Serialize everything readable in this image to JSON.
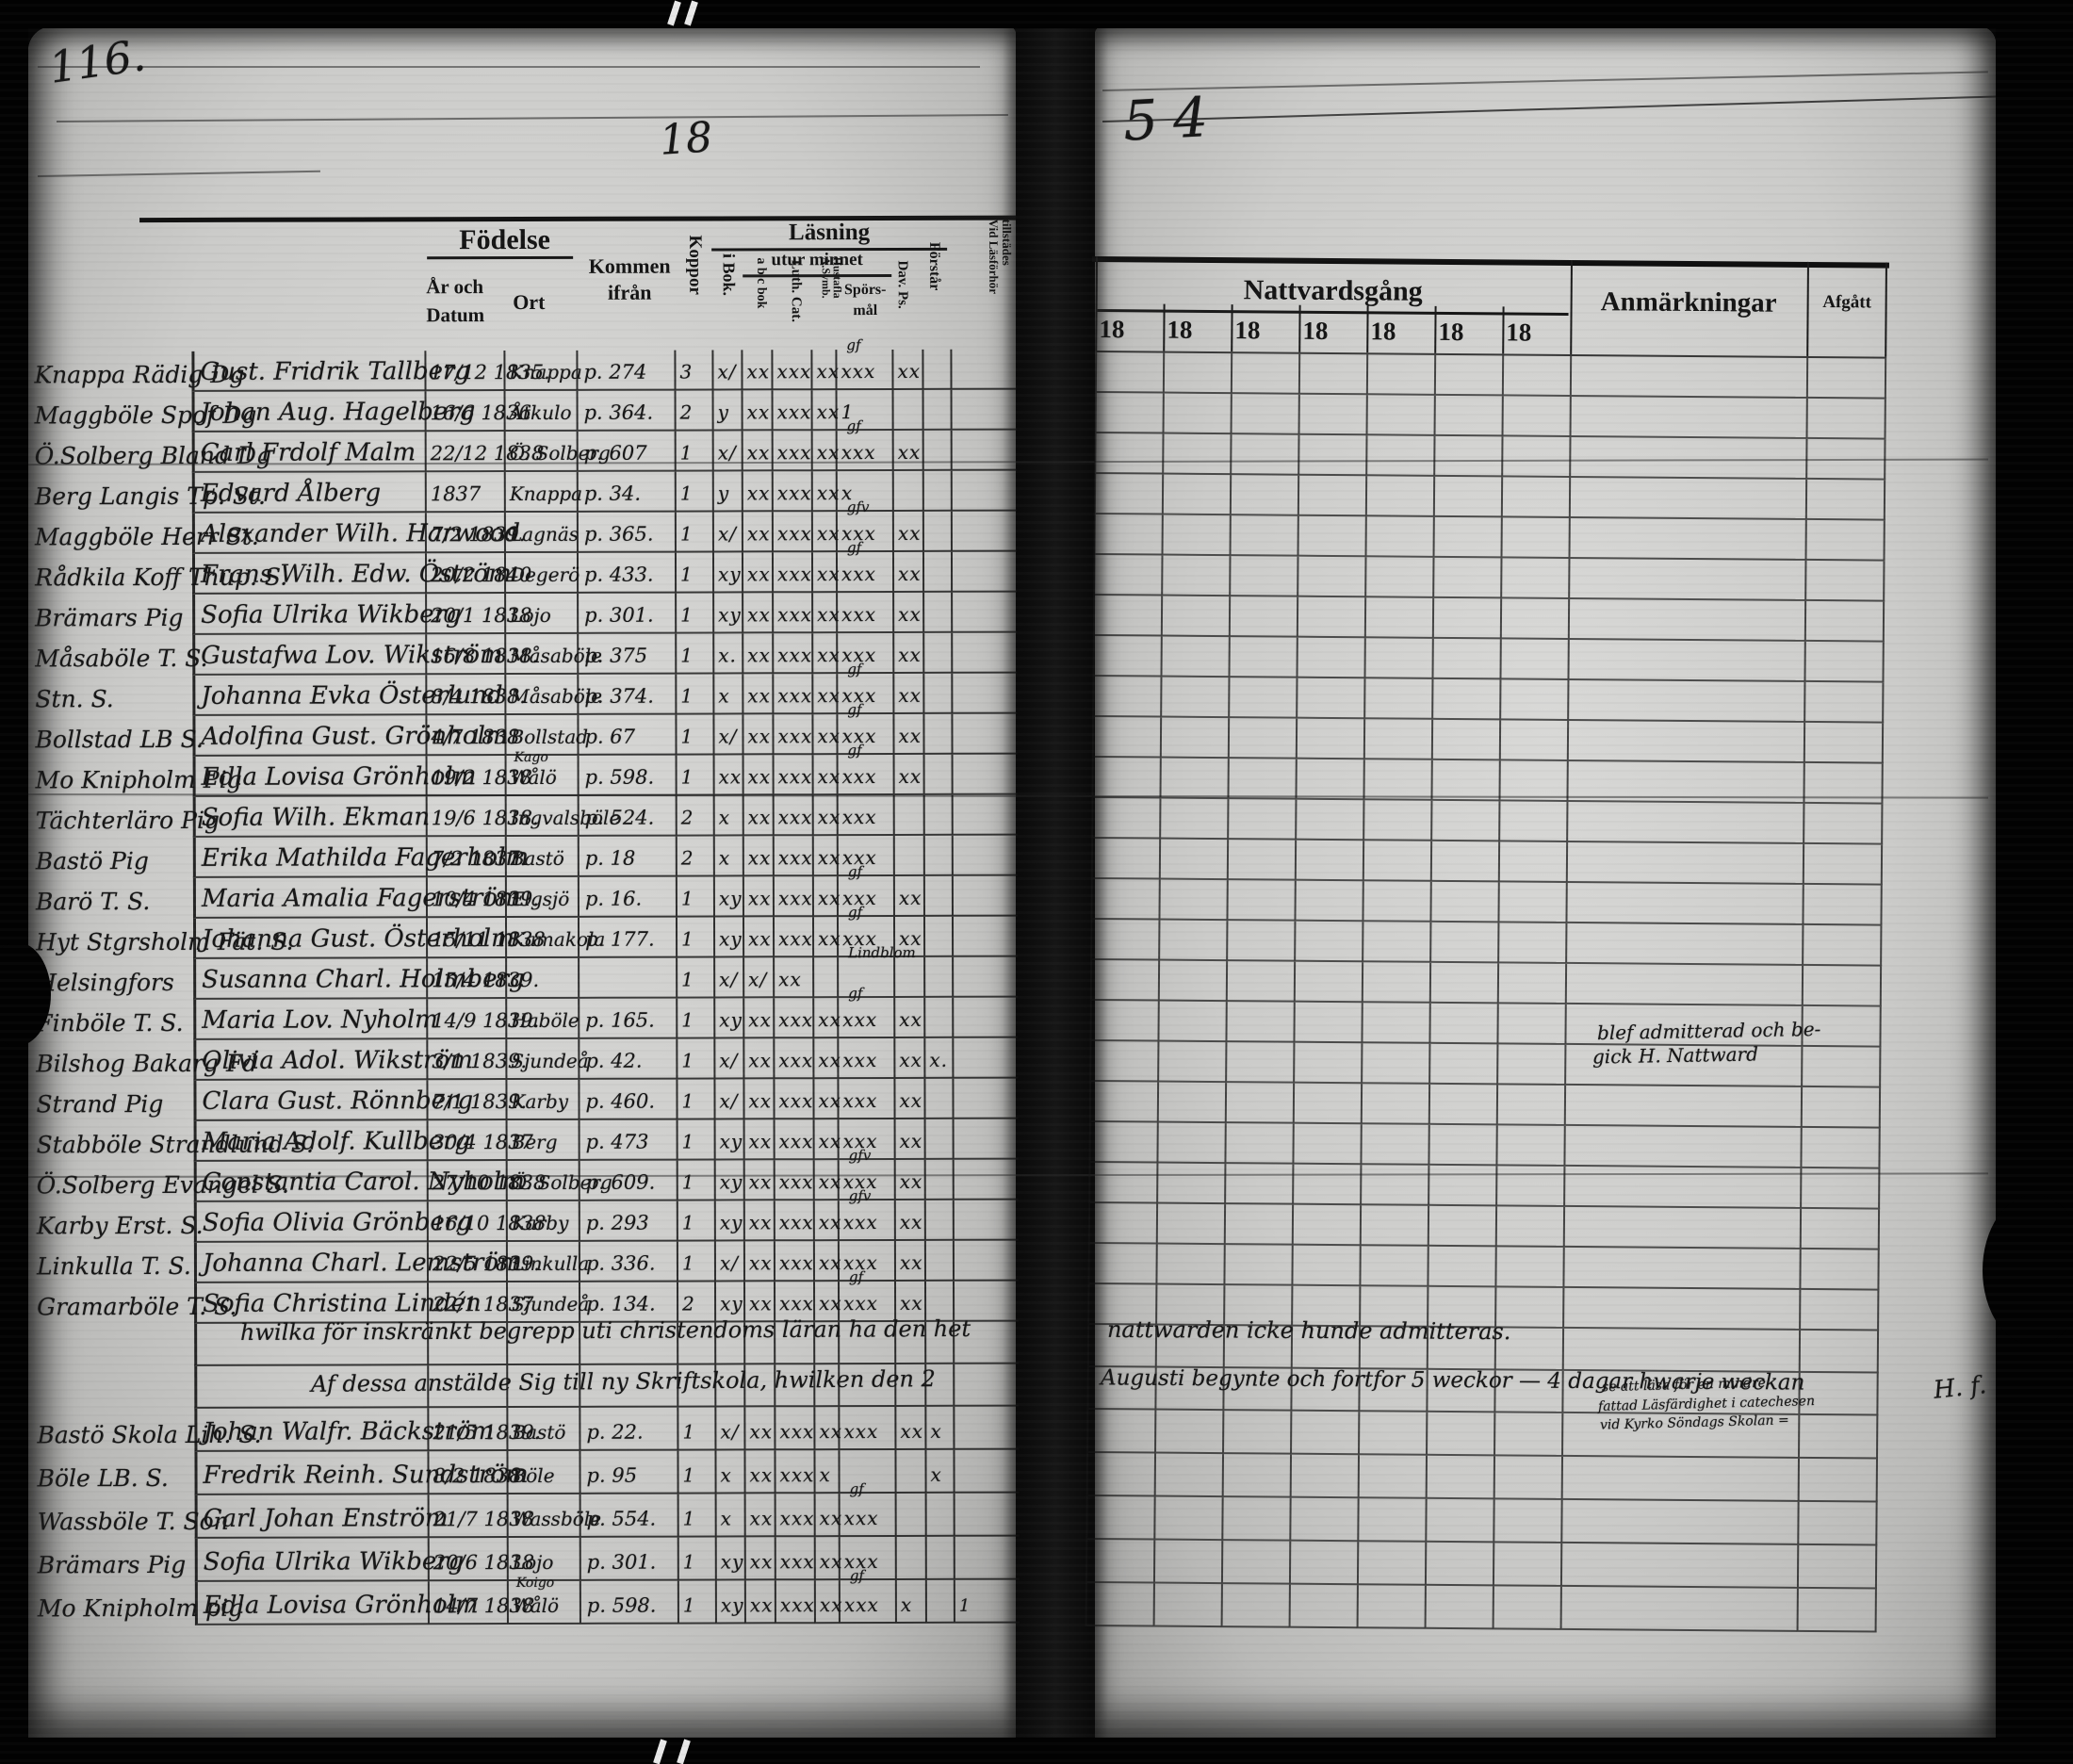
{
  "page": {
    "left_page_number": "116.",
    "year_handwritten_left": "18",
    "year_handwritten_right": "54"
  },
  "left_table": {
    "header": {
      "fodelse": "Födelse",
      "ar_och": "År och",
      "datum": "Datum",
      "ort": "Ort",
      "kommen": "Kommen",
      "ifran": "ifrån",
      "koppor": "Koppor",
      "lasning": "Läsning",
      "i_bok": "i Bok.",
      "utur_minnet": "utur minnet",
      "abc_bok": "a b c bok",
      "luth_cat": "Luth. Cat.",
      "symb": "A.Symb.",
      "hustafla": "Hustafla",
      "spors": "Spörs-",
      "mal": "mål",
      "dav_ps": "Dav. Ps.",
      "forstar": "Förstår",
      "vid_lasforhor": "Vid Läsförhör",
      "tillstades": "tillstädes"
    },
    "rows": [
      {
        "margin": "Knappa Rädig Dg",
        "name": "Gust. Fridrik Tallberg",
        "date": "17/12 1835.",
        "ortsup": "",
        "ort": "Knappa",
        "from": "p. 274",
        "koppor": "3",
        "marks": [
          "x/",
          "xx",
          "xxx",
          "xx",
          "xxx",
          "xx",
          ""
        ],
        "sup": "gf",
        "vid": ""
      },
      {
        "margin": "Maggböle Spof Dg",
        "name": "Johan Aug. Hagelberg",
        "date": "16/6 1836",
        "ortsup": "",
        "ort": "Åtkulo",
        "from": "p. 364.",
        "koppor": "2",
        "marks": [
          "y",
          "xx",
          "xxx",
          "xx",
          "1",
          "",
          ""
        ],
        "sup": "",
        "vid": ""
      },
      {
        "margin": "Ö.Solberg Bland Dg",
        "name": "Carl Frdolf Malm",
        "date": "22/12 1838",
        "ortsup": "",
        "ort": "Ö. Solberg",
        "from": "p. 607",
        "koppor": "1",
        "marks": [
          "x/",
          "xx",
          "xxx",
          "xx",
          "xxx",
          "xx",
          ""
        ],
        "sup": "gf",
        "vid": ""
      },
      {
        "margin": "Berg Langis Tp. St.",
        "name": "Edvard Ålberg",
        "date": "1837",
        "ortsup": "",
        "ort": "Knappa",
        "from": "p. 34.",
        "koppor": "1",
        "marks": [
          "y",
          "xx",
          "xxx",
          "xx",
          "x",
          "",
          ""
        ],
        "sup": "",
        "vid": ""
      },
      {
        "margin": "Maggböle Herr St.",
        "name": "Alexander Wilh. Harwood",
        "date": "7/2 1839.",
        "ortsup": "",
        "ort": "Lagnäs",
        "from": "p. 365.",
        "koppor": "1",
        "marks": [
          "x/",
          "xx",
          "xxx",
          "xx",
          "xxx",
          "xx",
          ""
        ],
        "sup": "gfv",
        "vid": ""
      },
      {
        "margin": "Rådkila Koff Thup. S.",
        "name": "Frans Wilh. Edw. Öström",
        "date": "20/2 1840",
        "ortsup": "",
        "ort": "Degerö",
        "from": "p. 433.",
        "koppor": "1",
        "marks": [
          "xy",
          "xx",
          "xxx",
          "xx",
          "xxx",
          "xx",
          ""
        ],
        "sup": "gf",
        "vid": ""
      },
      {
        "margin": "Brämars Pig",
        "name": "Sofia Ulrika Wikberg",
        "date": "20/1 1838",
        "ortsup": "",
        "ort": "Lojo",
        "from": "p. 301.",
        "koppor": "1",
        "marks": [
          "xy",
          "xx",
          "xxx",
          "xx",
          "xxx",
          "xx",
          ""
        ],
        "sup": "",
        "vid": ""
      },
      {
        "margin": "Måsaböle T. S.",
        "name": "Gustafwa Lov. Wikström",
        "date": "16/8 1838.",
        "ortsup": "",
        "ort": "Måsaböle",
        "from": "p. 375",
        "koppor": "1",
        "marks": [
          "x.",
          "xx",
          "xxx",
          "xx",
          "xxx",
          "xx",
          ""
        ],
        "sup": "",
        "vid": ""
      },
      {
        "margin": "Stn. S.",
        "name": "Johanna Evka Österlund",
        "date": "8/4 1838.",
        "ortsup": "",
        "ort": "Måsaböle",
        "from": "p. 374.",
        "koppor": "1",
        "marks": [
          "x",
          "xx",
          "xxx",
          "xx",
          "xxx",
          "xx",
          ""
        ],
        "sup": "gf",
        "vid": ""
      },
      {
        "margin": "Bollstad LB S.",
        "name": "Adolfina Gust. Grönholm",
        "date": "4/7 1838",
        "ortsup": "",
        "ort": "Bollstad",
        "from": "p. 67",
        "koppor": "1",
        "marks": [
          "x/",
          "xx",
          "xxx",
          "xx",
          "xxx",
          "xx",
          ""
        ],
        "sup": "gf",
        "vid": ""
      },
      {
        "margin": "Mo Knipholm Pig",
        "name": "Edla Lovisa Grönholm",
        "date": "19/2 1838",
        "ortsup": "Kago",
        "ort": "Wålö",
        "from": "p. 598.",
        "koppor": "1",
        "marks": [
          "xx",
          "xx",
          "xxx",
          "xx",
          "xxx",
          "xx",
          ""
        ],
        "sup": "gf",
        "vid": ""
      },
      {
        "margin": "Tächterläro Pig",
        "name": "Sofia Wilh. Ekman",
        "date": "19/6 1838.",
        "ortsup": "",
        "ort": "Ingvalsböle",
        "from": "p. 524.",
        "koppor": "2",
        "marks": [
          "x",
          "xx",
          "xxx",
          "xx",
          "xxx",
          "",
          ""
        ],
        "sup": "",
        "vid": ""
      },
      {
        "margin": "Bastö Pig",
        "name": "Erika Mathilda Fagerholm",
        "date": "7/2 1837.",
        "ortsup": "",
        "ort": "Bastö",
        "from": "p. 18",
        "koppor": "2",
        "marks": [
          "x",
          "xx",
          "xxx",
          "xx",
          "xxx",
          "",
          ""
        ],
        "sup": "",
        "vid": ""
      },
      {
        "margin": "Barö T. S.",
        "name": "Maria Amalia Fagerström",
        "date": "10/4 1839.",
        "ortsup": "",
        "ort": "Elgsjö",
        "from": "p. 16.",
        "koppor": "1",
        "marks": [
          "xy",
          "xx",
          "xxx",
          "xx",
          "xxx",
          "xx",
          ""
        ],
        "sup": "gf",
        "vid": ""
      },
      {
        "margin": "Hyt Stgrsholm Fät. S.",
        "name": "Johanna Gust. Österholm",
        "date": "15/11 1838",
        "ortsup": "",
        "ort": "Kamakola",
        "from": "p. 177.",
        "koppor": "1",
        "marks": [
          "xy",
          "xx",
          "xxx",
          "xx",
          "xxx",
          "xx",
          ""
        ],
        "sup": "gf",
        "vid": ""
      },
      {
        "margin": "Helsingfors",
        "name": "Susanna Charl. Holmberg",
        "date": "15/4 1839.",
        "ortsup": "",
        "ort": "",
        "from": "",
        "koppor": "1",
        "marks": [
          "x/",
          "x/",
          "xx",
          "",
          "",
          "",
          ""
        ],
        "sup": "Lindblom",
        "vid": ""
      },
      {
        "margin": "Finböle T. S.",
        "name": "Maria Lov. Nyholm",
        "date": "14/9 1839.",
        "ortsup": "",
        "ort": "Haböle",
        "from": "p. 165.",
        "koppor": "1",
        "marks": [
          "xy",
          "xx",
          "xxx",
          "xx",
          "xxx",
          "xx",
          ""
        ],
        "sup": "gf",
        "vid": ""
      },
      {
        "margin": "Bilshog Bakarg Fd",
        "name": "Olivia Adol. Wikström",
        "date": "3/1 1839.",
        "ortsup": "",
        "ort": "Sjundeå",
        "from": "p. 42.",
        "koppor": "1",
        "marks": [
          "x/",
          "xx",
          "xxx",
          "xx",
          "xxx",
          "xx",
          "x."
        ],
        "sup": "",
        "vid": ""
      },
      {
        "margin": "Strand Pig",
        "name": "Clara Gust. Rönnberg",
        "date": "7/1 1839.",
        "ortsup": "",
        "ort": "Karby",
        "from": "p. 460.",
        "koppor": "1",
        "marks": [
          "x/",
          "xx",
          "xxx",
          "xx",
          "xxx",
          "xx",
          ""
        ],
        "sup": "",
        "vid": ""
      },
      {
        "margin": "Stabböle Strandlund S.",
        "name": "Maria Adolf. Kullberg",
        "date": "30/4 1837",
        "ortsup": "",
        "ort": "Berg",
        "from": "p. 473",
        "koppor": "1",
        "marks": [
          "xy",
          "xx",
          "xxx",
          "xx",
          "xxx",
          "xx",
          ""
        ],
        "sup": "",
        "vid": ""
      },
      {
        "margin": "Ö.Solberg Evangel S.",
        "name": "Constantia Carol. Nyholm",
        "date": "27/10 1838",
        "ortsup": "",
        "ort": "Ö. Solberg",
        "from": "p. 609.",
        "koppor": "1",
        "marks": [
          "xy",
          "xx",
          "xxx",
          "xx",
          "xxx",
          "xx",
          ""
        ],
        "sup": "gfv",
        "vid": ""
      },
      {
        "margin": "Karby Erst. S.",
        "name": "Sofia Olivia Grönberg",
        "date": "16/10 1838",
        "ortsup": "",
        "ort": "Karby",
        "from": "p. 293",
        "koppor": "1",
        "marks": [
          "xy",
          "xx",
          "xxx",
          "xx",
          "xxx",
          "xx",
          ""
        ],
        "sup": "gfv",
        "vid": ""
      },
      {
        "margin": "Linkulla T. S.",
        "name": "Johanna Charl. Lemström",
        "date": "22/5 1839.",
        "ortsup": "",
        "ort": "Linkulla",
        "from": "p. 336.",
        "koppor": "1",
        "marks": [
          "x/",
          "xx",
          "xxx",
          "xx",
          "xxx",
          "xx",
          ""
        ],
        "sup": "",
        "vid": ""
      },
      {
        "margin": "Gramarböle T. S.",
        "name": "Sofia Christina Lindén",
        "date": "22/1 1837",
        "ortsup": "",
        "ort": "Sjundeå",
        "from": "p. 134.",
        "koppor": "2",
        "marks": [
          "xy",
          "xx",
          "xxx",
          "xx",
          "xxx",
          "xx",
          ""
        ],
        "sup": "gf",
        "vid": ""
      },
      {
        "margin": "Bastö Skola Lih. S.",
        "name": "Johan Walfr. Bäckström",
        "date": "21/5 1839.",
        "ortsup": "",
        "ort": "Bastö",
        "from": "p. 22.",
        "koppor": "1",
        "marks": [
          "x/",
          "xx",
          "xxx",
          "xx",
          "xxx",
          "xx",
          "x"
        ],
        "sup": "",
        "vid": ""
      },
      {
        "margin": "Böle LB. S.",
        "name": "Fredrik Reinh. Sundström",
        "date": "8/2 1838",
        "ortsup": "",
        "ort": "Böle",
        "from": "p. 95",
        "koppor": "1",
        "marks": [
          "x",
          "xx",
          "xxx",
          "x",
          "",
          "",
          "x"
        ],
        "sup": "",
        "vid": ""
      },
      {
        "margin": "Wassböle T. Son",
        "name": "Carl Johan Enström",
        "date": "21/7 1838",
        "ortsup": "",
        "ort": "Wassböle",
        "from": "p. 554.",
        "koppor": "1",
        "marks": [
          "x",
          "xx",
          "xxx",
          "xx",
          "xxx",
          "",
          ""
        ],
        "sup": "gf",
        "vid": ""
      },
      {
        "margin": "Brämars Pig",
        "name": "Sofia Ulrika Wikberg",
        "date": "20/6 1838",
        "ortsup": "",
        "ort": "Lojo",
        "from": "p. 301.",
        "koppor": "1",
        "marks": [
          "xy",
          "xx",
          "xxx",
          "xx",
          "xxx",
          "",
          ""
        ],
        "sup": "",
        "vid": ""
      },
      {
        "margin": "Mo Knipholm pig",
        "name": "Edla Lovisa Grönholm",
        "date": "14/7 1838",
        "ortsup": "Koigo",
        "ort": "Wålö",
        "from": "p. 598.",
        "koppor": "1",
        "marks": [
          "xy",
          "xx",
          "xxx",
          "xx",
          "xxx",
          "x",
          ""
        ],
        "sup": "gf",
        "vid": "1"
      }
    ],
    "notes": {
      "line1": "hwilka för inskränkt begrepp uti christendoms läran ha den het",
      "line2": "Af dessa anstälde Sig till ny Skriftskola, hwilken den 2"
    }
  },
  "right_table": {
    "header": {
      "nattvardsgang": "Nattvardsgång",
      "year_cols": [
        "18",
        "18",
        "18",
        "18",
        "18",
        "18",
        "18"
      ],
      "anmarkningar": "Anmärkningar",
      "afgatt": "Afgått"
    },
    "notes": {
      "line1": "nattwarden icke hunde admitteras.",
      "line2": "Augusti begynte och fortfor 5 weckor — 4 dagar hwarje weckan"
    },
    "annotations": {
      "row17_line1": "blef admitterad och be-",
      "row17_line2": "gick H. Nattward",
      "row25_line1": "se att läsa för en mindre",
      "row25_line2": "fattad Läsfärdighet i catechesen",
      "row25_line3": "vid Kyrko Söndags Skolan =",
      "signature": "H. f."
    }
  }
}
